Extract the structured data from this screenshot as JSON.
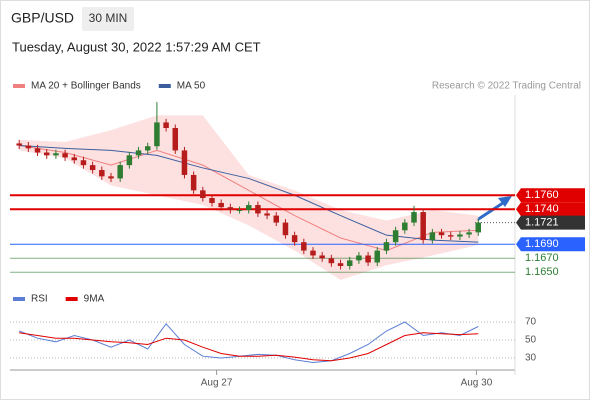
{
  "header": {
    "symbol": "GBP/USD",
    "interval": "30 MIN",
    "timestamp": "Tuesday, August 30, 2022 1:57:29 AM CET"
  },
  "chart_data": {
    "type": "candlestick",
    "legend": [
      {
        "name": "MA 20 + Bollinger Bands",
        "color": "#f08080"
      },
      {
        "name": "MA 50",
        "color": "#3b5f9e"
      }
    ],
    "credit": "Research © 2022 Trading Central",
    "up_color": "#2e7d32",
    "down_color": "#b71c1c",
    "xlim": [
      -1,
      54
    ],
    "ylim": [
      1.1639,
      1.1896
    ],
    "xticks": [
      {
        "value": 21.5,
        "label": "Aug 27"
      },
      {
        "value": 49.8,
        "label": "Aug 30"
      }
    ],
    "candles": [
      [
        1.1834,
        1.1839,
        1.1826,
        1.1831
      ],
      [
        1.1831,
        1.1836,
        1.1822,
        1.1827
      ],
      [
        1.1827,
        1.1832,
        1.1816,
        1.1821
      ],
      [
        1.1821,
        1.1826,
        1.1812,
        1.1817
      ],
      [
        1.1817,
        1.1825,
        1.1812,
        1.182
      ],
      [
        1.182,
        1.1825,
        1.1809,
        1.1814
      ],
      [
        1.1814,
        1.1819,
        1.1805,
        1.181
      ],
      [
        1.181,
        1.1815,
        1.1798,
        1.1803
      ],
      [
        1.1803,
        1.1808,
        1.1791,
        1.1796
      ],
      [
        1.1796,
        1.1801,
        1.1782,
        1.1787
      ],
      [
        1.1787,
        1.1792,
        1.1779,
        1.1784
      ],
      [
        1.1784,
        1.1808,
        1.1779,
        1.1803
      ],
      [
        1.1803,
        1.1822,
        1.1798,
        1.1817
      ],
      [
        1.1817,
        1.1829,
        1.1812,
        1.1824
      ],
      [
        1.1824,
        1.1835,
        1.1819,
        1.183
      ],
      [
        1.183,
        1.1893,
        1.1825,
        1.1864
      ],
      [
        1.1864,
        1.1869,
        1.1851,
        1.1856
      ],
      [
        1.1856,
        1.1861,
        1.1819,
        1.1824
      ],
      [
        1.1824,
        1.1829,
        1.1784,
        1.1789
      ],
      [
        1.1789,
        1.1794,
        1.1762,
        1.1767
      ],
      [
        1.1767,
        1.1772,
        1.1751,
        1.1756
      ],
      [
        1.1756,
        1.1761,
        1.1744,
        1.1749
      ],
      [
        1.1749,
        1.1754,
        1.1738,
        1.1743
      ],
      [
        1.1743,
        1.1748,
        1.1734,
        1.1739
      ],
      [
        1.1739,
        1.1744,
        1.1734,
        1.1739
      ],
      [
        1.1739,
        1.1751,
        1.1734,
        1.1746
      ],
      [
        1.1746,
        1.1751,
        1.1729,
        1.1734
      ],
      [
        1.1734,
        1.1739,
        1.1726,
        1.1731
      ],
      [
        1.1731,
        1.1736,
        1.1716,
        1.1721
      ],
      [
        1.1721,
        1.1726,
        1.1698,
        1.1703
      ],
      [
        1.1703,
        1.1708,
        1.1688,
        1.1693
      ],
      [
        1.1693,
        1.1698,
        1.1676,
        1.1681
      ],
      [
        1.1681,
        1.1686,
        1.1669,
        1.1674
      ],
      [
        1.1674,
        1.1679,
        1.1665,
        1.167
      ],
      [
        1.167,
        1.1675,
        1.1658,
        1.1663
      ],
      [
        1.1663,
        1.1668,
        1.1654,
        1.1659
      ],
      [
        1.1659,
        1.1672,
        1.1654,
        1.1667
      ],
      [
        1.1667,
        1.1679,
        1.1662,
        1.1674
      ],
      [
        1.1674,
        1.1679,
        1.1659,
        1.1664
      ],
      [
        1.1664,
        1.1686,
        1.1659,
        1.1681
      ],
      [
        1.1681,
        1.1698,
        1.1676,
        1.1693
      ],
      [
        1.1693,
        1.1715,
        1.1688,
        1.171
      ],
      [
        1.171,
        1.1726,
        1.1705,
        1.1721
      ],
      [
        1.1721,
        1.1745,
        1.1716,
        1.1736
      ],
      [
        1.1736,
        1.1741,
        1.1691,
        1.1696
      ],
      [
        1.1696,
        1.1712,
        1.1691,
        1.1707
      ],
      [
        1.1707,
        1.1712,
        1.1698,
        1.1703
      ],
      [
        1.1703,
        1.1708,
        1.1696,
        1.1701
      ],
      [
        1.1701,
        1.1709,
        1.1696,
        1.1704
      ],
      [
        1.1704,
        1.1712,
        1.1699,
        1.1707
      ],
      [
        1.1707,
        1.1726,
        1.1702,
        1.1721
      ]
    ],
    "ma_x": [
      0,
      5,
      10,
      15,
      20,
      25,
      30,
      35,
      40,
      45,
      50
    ],
    "ma50": [
      1.1831,
      1.1827,
      1.1824,
      1.1817,
      1.1799,
      1.1784,
      1.176,
      1.1731,
      1.1703,
      1.1696,
      1.1693
    ],
    "ma20": [
      1.1831,
      1.1821,
      1.1803,
      1.1824,
      1.1803,
      1.1767,
      1.1731,
      1.1699,
      1.1681,
      1.1707,
      1.171
    ],
    "bb_upper": [
      1.1839,
      1.1836,
      1.1853,
      1.1874,
      1.1874,
      1.1789,
      1.1767,
      1.1739,
      1.1724,
      1.1739,
      1.1731
    ],
    "bb_lower": [
      1.1824,
      1.1813,
      1.1774,
      1.176,
      1.1746,
      1.1717,
      1.1681,
      1.1639,
      1.166,
      1.1674,
      1.1689
    ],
    "levels": [
      {
        "value": 1.176,
        "label": "1.1760",
        "color": "#e00000",
        "style": "resistance"
      },
      {
        "value": 1.174,
        "label": "1.1740",
        "color": "#e00000",
        "style": "resistance"
      },
      {
        "value": 1.1721,
        "label": "1.1721",
        "color": "#333333",
        "style": "current"
      },
      {
        "value": 1.169,
        "label": "1.1690",
        "color": "#2962ff",
        "style": "pivot"
      },
      {
        "value": 1.167,
        "label": "1.1670",
        "color": "#2e7d32",
        "style": "support"
      },
      {
        "value": 1.165,
        "label": "1.1650",
        "color": "#2e7d32",
        "style": "support"
      }
    ],
    "rsi": {
      "legend": [
        {
          "name": "RSI",
          "color": "#5b7fd6"
        },
        {
          "name": "9MA",
          "color": "#e00000"
        }
      ],
      "x": [
        0,
        2,
        4,
        6,
        8,
        10,
        12,
        14,
        16,
        18,
        20,
        22,
        24,
        26,
        28,
        30,
        32,
        34,
        36,
        38,
        40,
        42,
        44,
        46,
        48,
        50
      ],
      "rsi": [
        60,
        52,
        48,
        55,
        50,
        42,
        50,
        40,
        68,
        45,
        32,
        30,
        32,
        34,
        33,
        28,
        25,
        27,
        35,
        45,
        60,
        70,
        55,
        58,
        55,
        65
      ],
      "ma9": [
        58,
        55,
        52,
        52,
        50,
        48,
        47,
        45,
        52,
        50,
        42,
        35,
        32,
        32,
        33,
        31,
        28,
        27,
        30,
        35,
        45,
        55,
        58,
        57,
        56,
        57
      ],
      "ylim": [
        20,
        80
      ],
      "yticks": [
        70,
        50,
        30
      ]
    }
  }
}
